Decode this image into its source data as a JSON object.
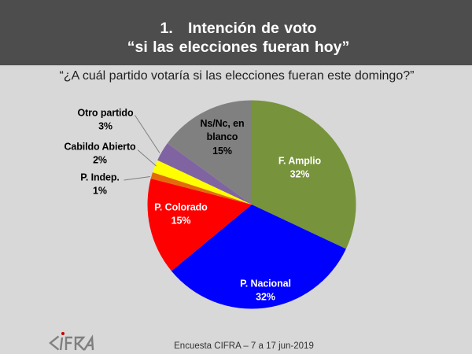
{
  "slide": {
    "title_line1": "1.   Intención de voto",
    "title_line2": "“si las elecciones fueran hoy”",
    "question": "“¿A cuál partido votaría si las elecciones fueran este domingo?”",
    "footer": "Encuesta CIFRA – 7 a 17 jun-2019",
    "logo_text": "CIFRA"
  },
  "colors": {
    "titlebar_bg": "#4D4D4D",
    "slide_bg": "#D8D8D8",
    "title_text": "#FFFFFF",
    "body_text": "#1F1F1F",
    "leader_line": "#7F7F7F",
    "logo_gray": "#7F7F7F",
    "logo_dot_red": "#C00000"
  },
  "chart_data": {
    "type": "pie",
    "title": "Intención de voto “si las elecciones fueran hoy”",
    "start_angle_deg": 0,
    "direction": "clockwise",
    "slices": [
      {
        "label": "F. Amplio",
        "value": 32,
        "pct_label": "32%",
        "color": "#77933C",
        "label_placement": "inside",
        "label_color": "#FFFFFF"
      },
      {
        "label": "P. Nacional",
        "value": 32,
        "pct_label": "32%",
        "color": "#0000FF",
        "label_placement": "inside",
        "label_color": "#FFFFFF"
      },
      {
        "label": "P. Colorado",
        "value": 15,
        "pct_label": "15%",
        "color": "#FF0000",
        "label_placement": "inside",
        "label_color": "#FFFFFF"
      },
      {
        "label": "P. Indep.",
        "value": 1,
        "pct_label": "1%",
        "color": "#E36C09",
        "label_placement": "outside",
        "label_color": "#000000"
      },
      {
        "label": "Cabildo Abierto",
        "value": 2,
        "pct_label": "2%",
        "color": "#FFFF00",
        "label_placement": "outside",
        "label_color": "#000000"
      },
      {
        "label": "Otro partido",
        "value": 3,
        "pct_label": "3%",
        "color": "#8064A2",
        "label_placement": "outside",
        "label_color": "#000000"
      },
      {
        "label": "Ns/Nc, en blanco",
        "value": 15,
        "pct_label": "15%",
        "color": "#808080",
        "label_placement": "inside",
        "label_color": "#000000"
      }
    ]
  }
}
